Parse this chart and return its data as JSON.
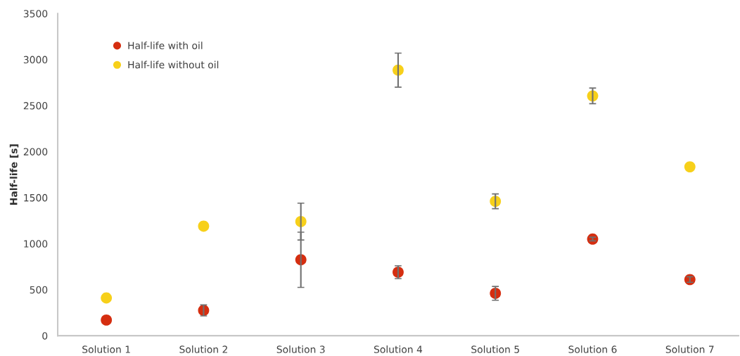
{
  "chart_data": {
    "type": "scatter",
    "ylabel": "Half-life [s]",
    "categories": [
      "Solution 1",
      "Solution 2",
      "Solution 3",
      "Solution 4",
      "Solution 5",
      "Solution 6",
      "Solution 7"
    ],
    "series": [
      {
        "name": "Half-life with oil",
        "color": "#d52e10",
        "values": [
          170,
          275,
          825,
          690,
          460,
          1050,
          610
        ],
        "errors": [
          null,
          60,
          300,
          70,
          75,
          20,
          30
        ]
      },
      {
        "name": "Half-life without oil",
        "color": "#f7d01a",
        "values": [
          410,
          1190,
          1240,
          2885,
          1460,
          2605,
          1835
        ],
        "errors": [
          null,
          null,
          200,
          185,
          80,
          85,
          null
        ]
      }
    ],
    "ylim": [
      0,
      3500
    ],
    "yticks": [
      0,
      500,
      1000,
      1500,
      2000,
      2500,
      3000,
      3500
    ],
    "grid": false,
    "legend": "top left",
    "marker": "circle"
  }
}
